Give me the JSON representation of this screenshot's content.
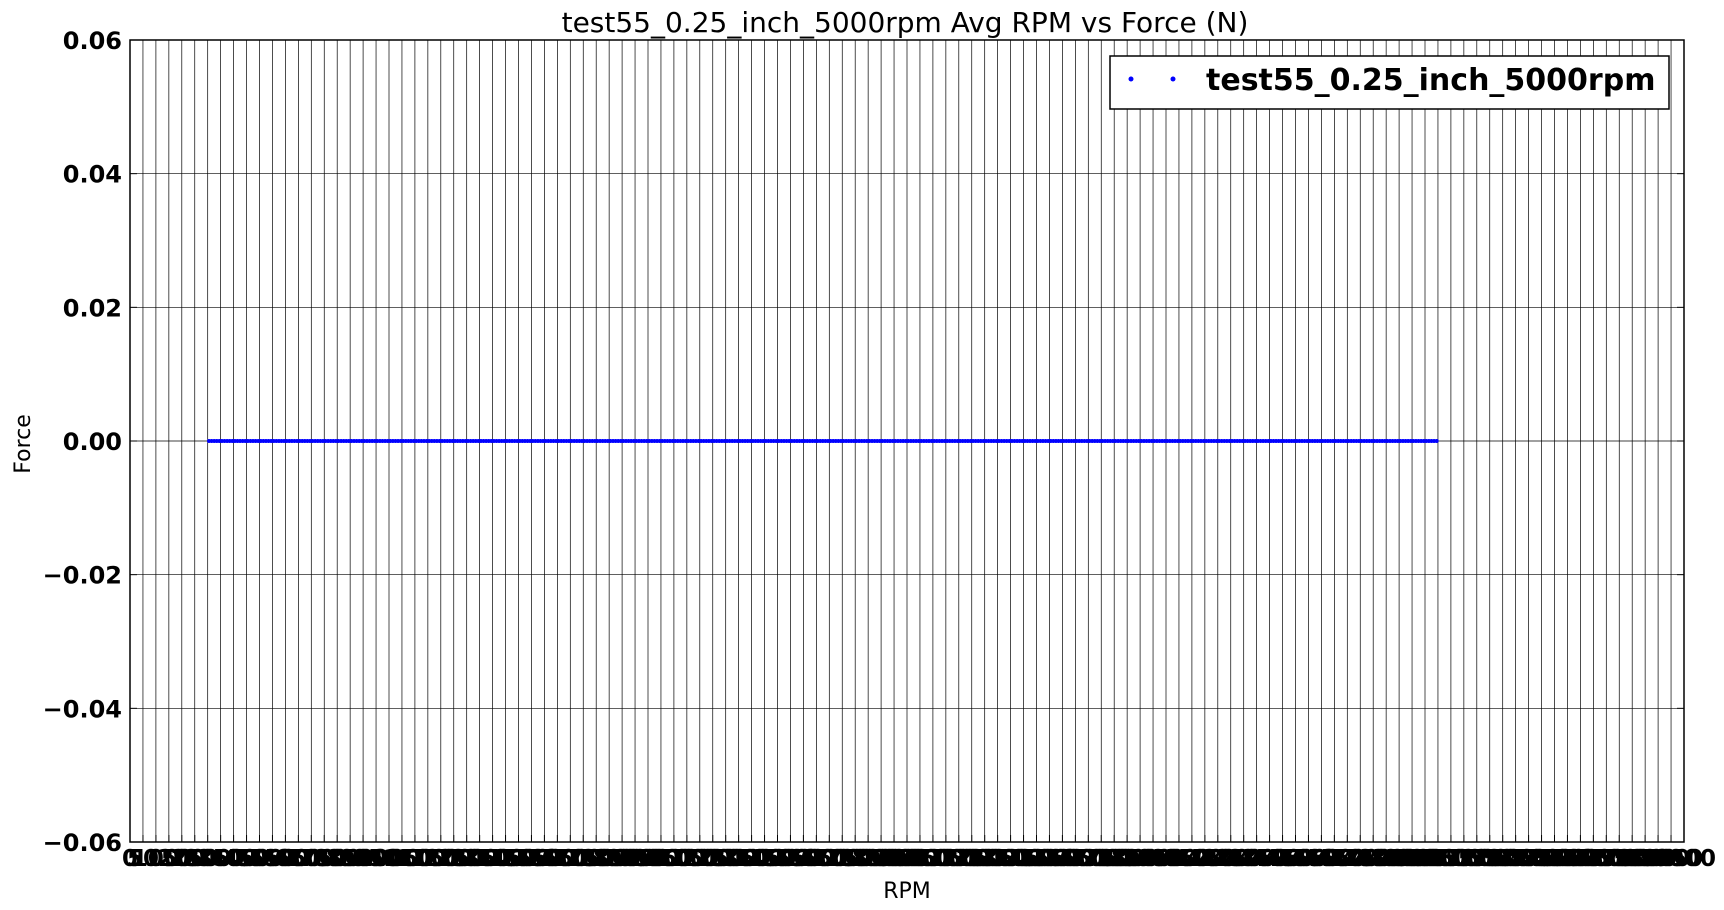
{
  "chart_data": {
    "type": "scatter",
    "title": "test55_0.25_inch_5000rpm Avg RPM vs Force (N)",
    "xlabel": "RPM",
    "ylabel": "Force",
    "xlim": [
      0,
      6000
    ],
    "ylim": [
      -0.06,
      0.06
    ],
    "grid": true,
    "legend_position": "top-right",
    "colors": {
      "series": "#0000ff",
      "grid": "#000000",
      "axes": "#000000"
    },
    "x_ticks": [
      0,
      50,
      100,
      150,
      200,
      250,
      300,
      350,
      400,
      450,
      500,
      550,
      600,
      650,
      700,
      750,
      800,
      850,
      900,
      950,
      1000,
      1050,
      1100,
      1150,
      1200,
      1250,
      1300,
      1350,
      1400,
      1450,
      1500,
      1550,
      1600,
      1650,
      1700,
      1750,
      1800,
      1850,
      1900,
      1950,
      2000,
      2050,
      2100,
      2150,
      2200,
      2250,
      2300,
      2350,
      2400,
      2450,
      2500,
      2550,
      2600,
      2650,
      2700,
      2750,
      2800,
      2850,
      2900,
      2950,
      3000,
      3050,
      3100,
      3150,
      3200,
      3250,
      3300,
      3350,
      3400,
      3450,
      3500,
      3550,
      3600,
      3650,
      3700,
      3750,
      3800,
      3850,
      3900,
      3950,
      4000,
      4050,
      4100,
      4150,
      4200,
      4250,
      4300,
      4350,
      4400,
      4450,
      4500,
      4550,
      4600,
      4650,
      4700,
      4750,
      4800,
      4850,
      4900,
      4950,
      5000,
      5050,
      5100,
      5150,
      5200,
      5250,
      5300,
      5350,
      5400,
      5450,
      5500,
      5550,
      5600,
      5650,
      5700,
      5750,
      5800,
      5850,
      5900,
      5950,
      6000
    ],
    "y_ticks": [
      0.06,
      0.04,
      0.02,
      0.0,
      -0.02,
      -0.04,
      -0.06
    ],
    "y_tick_labels": [
      "0.06",
      "0.04",
      "0.02",
      "0.00",
      "−0.02",
      "−0.04",
      "−0.06"
    ],
    "series": [
      {
        "name": "test55_0.25_inch_5000rpm",
        "marker": "point",
        "x_range": [
          305,
          5045
        ],
        "x_step": 10,
        "y_constant": 0.0
      }
    ]
  }
}
